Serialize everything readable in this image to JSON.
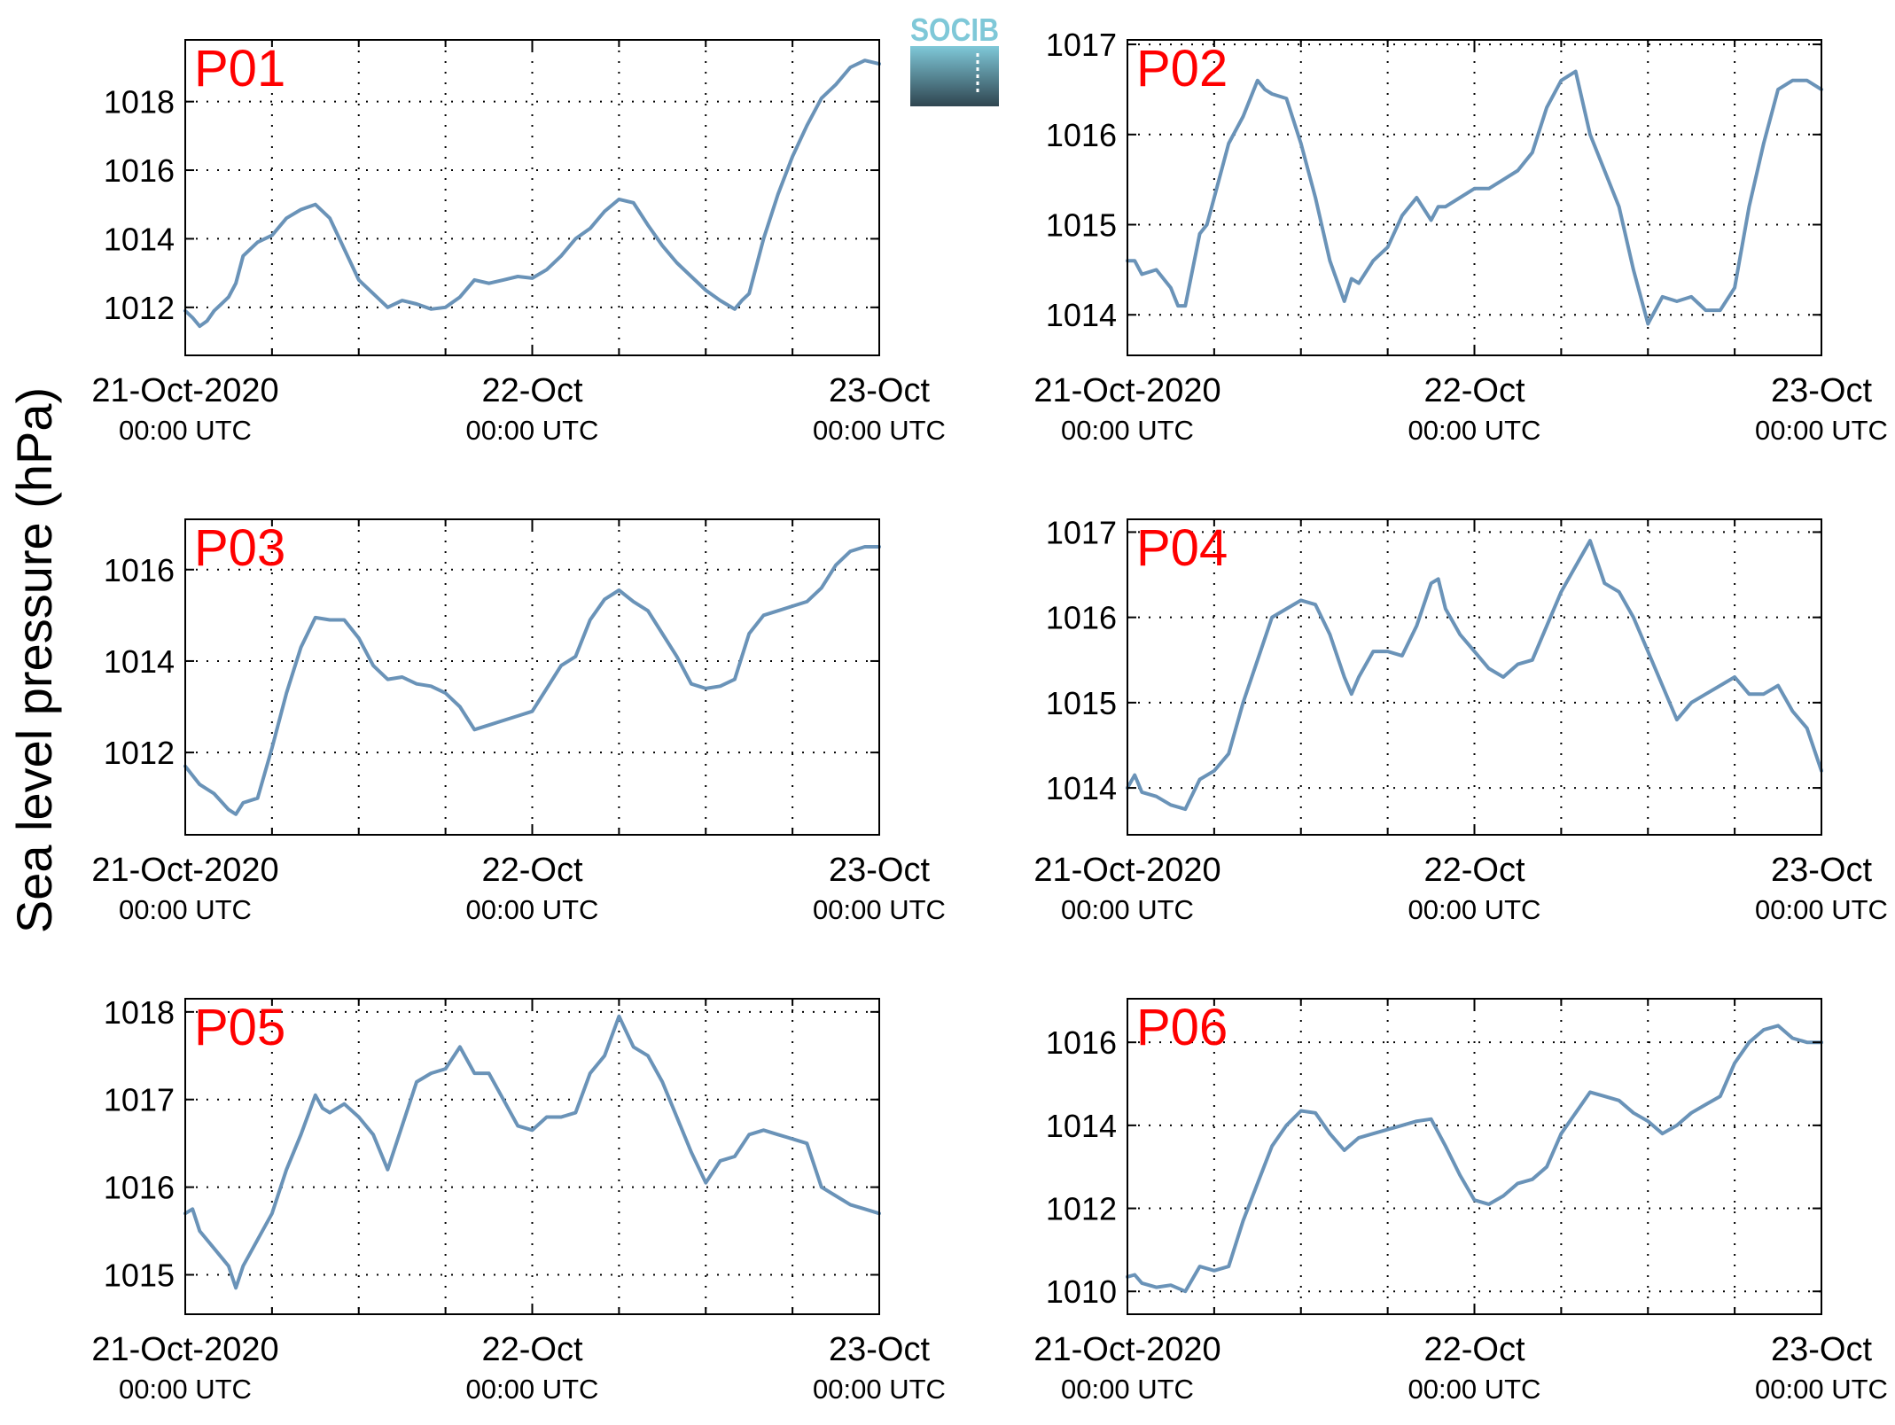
{
  "figure": {
    "ylabel": "Sea level pressure (hPa)",
    "logo_text": "SOCIB",
    "colors": {
      "line": "#6a93b8",
      "panel_label": "#ff0000",
      "axis": "#000000",
      "grid": "#000000",
      "logo_top": "#7fc8d8",
      "logo_bottom": "#2f4550"
    }
  },
  "chart_data": [
    {
      "type": "line",
      "panel_label": "P01",
      "ylim": [
        1010.6,
        1019.8
      ],
      "yticks": [
        1012,
        1014,
        1016,
        1018
      ],
      "xticks": [
        "21-Oct-2020",
        "22-Oct",
        "23-Oct"
      ],
      "xticks_sub": [
        "00:00 UTC",
        "00:00 UTC",
        "00:00 UTC"
      ],
      "xlim_hours": [
        0,
        48
      ],
      "grid": true,
      "x": [
        0,
        0.5,
        1,
        1.5,
        2,
        2.5,
        3,
        3.5,
        4,
        5,
        6,
        7,
        8,
        9,
        10,
        11,
        12,
        13,
        14,
        15,
        16,
        17,
        18,
        19,
        20,
        21,
        22,
        23,
        24,
        25,
        26,
        27,
        28,
        29,
        30,
        31,
        32,
        33,
        34,
        35,
        36,
        37,
        38,
        38.5,
        39,
        40,
        41,
        42,
        43,
        44,
        45,
        46,
        47,
        48
      ],
      "values": [
        1011.9,
        1011.7,
        1011.45,
        1011.6,
        1011.9,
        1012.1,
        1012.3,
        1012.7,
        1013.5,
        1013.9,
        1014.1,
        1014.6,
        1014.85,
        1015.0,
        1014.6,
        1013.7,
        1012.8,
        1012.4,
        1012.0,
        1012.2,
        1012.1,
        1011.95,
        1012.0,
        1012.3,
        1012.8,
        1012.7,
        1012.8,
        1012.9,
        1012.85,
        1013.1,
        1013.5,
        1014.0,
        1014.3,
        1014.8,
        1015.15,
        1015.05,
        1014.4,
        1013.8,
        1013.3,
        1012.9,
        1012.5,
        1012.2,
        1011.95,
        1012.2,
        1012.4,
        1014.0,
        1015.3,
        1016.4,
        1017.3,
        1018.1,
        1018.5,
        1019.0,
        1019.2,
        1019.1
      ]
    },
    {
      "type": "line",
      "panel_label": "P02",
      "ylim": [
        1013.55,
        1017.05
      ],
      "yticks": [
        1014,
        1015,
        1016,
        1017
      ],
      "xticks": [
        "21-Oct-2020",
        "22-Oct",
        "23-Oct"
      ],
      "xticks_sub": [
        "00:00 UTC",
        "00:00 UTC",
        "00:00 UTC"
      ],
      "xlim_hours": [
        0,
        48
      ],
      "grid": true,
      "x": [
        0,
        0.5,
        1,
        2,
        3,
        3.5,
        4,
        5,
        5.5,
        6,
        7,
        8,
        9,
        9.5,
        10,
        11,
        12,
        13,
        14,
        15,
        15.5,
        16,
        17,
        18,
        19,
        20,
        21,
        21.5,
        22,
        23,
        24,
        25,
        26,
        27,
        28,
        29,
        30,
        31,
        32,
        33,
        34,
        35,
        36,
        37,
        38,
        39,
        40,
        41,
        42,
        43,
        44,
        45,
        46,
        47,
        48
      ],
      "values": [
        1014.6,
        1014.6,
        1014.45,
        1014.5,
        1014.3,
        1014.1,
        1014.1,
        1014.9,
        1015.0,
        1015.3,
        1015.9,
        1016.2,
        1016.6,
        1016.5,
        1016.45,
        1016.4,
        1015.9,
        1015.3,
        1014.6,
        1014.15,
        1014.4,
        1014.35,
        1014.6,
        1014.75,
        1015.1,
        1015.3,
        1015.05,
        1015.2,
        1015.2,
        1015.3,
        1015.4,
        1015.4,
        1015.5,
        1015.6,
        1015.8,
        1016.3,
        1016.6,
        1016.7,
        1016.0,
        1015.6,
        1015.2,
        1014.5,
        1013.9,
        1014.2,
        1014.15,
        1014.2,
        1014.05,
        1014.05,
        1014.3,
        1015.2,
        1015.9,
        1016.5,
        1016.6,
        1016.6,
        1016.5
      ]
    },
    {
      "type": "line",
      "panel_label": "P03",
      "ylim": [
        1010.2,
        1017.1
      ],
      "yticks": [
        1012,
        1014,
        1016
      ],
      "xticks": [
        "21-Oct-2020",
        "22-Oct",
        "23-Oct"
      ],
      "xticks_sub": [
        "00:00 UTC",
        "00:00 UTC",
        "00:00 UTC"
      ],
      "xlim_hours": [
        0,
        48
      ],
      "grid": true,
      "x": [
        0,
        1,
        2,
        3,
        3.5,
        4,
        5,
        6,
        7,
        8,
        9,
        10,
        11,
        12,
        13,
        14,
        15,
        16,
        17,
        18,
        19,
        20,
        21,
        22,
        23,
        24,
        25,
        26,
        27,
        28,
        29,
        30,
        31,
        32,
        33,
        34,
        35,
        36,
        37,
        38,
        39,
        40,
        41,
        42,
        43,
        44,
        45,
        46,
        47,
        48
      ],
      "values": [
        1011.7,
        1011.3,
        1011.1,
        1010.75,
        1010.65,
        1010.9,
        1011.0,
        1012.1,
        1013.3,
        1014.3,
        1014.95,
        1014.9,
        1014.9,
        1014.5,
        1013.9,
        1013.6,
        1013.65,
        1013.5,
        1013.45,
        1013.3,
        1013.0,
        1012.5,
        1012.6,
        1012.7,
        1012.8,
        1012.9,
        1013.4,
        1013.9,
        1014.1,
        1014.9,
        1015.35,
        1015.55,
        1015.3,
        1015.1,
        1014.6,
        1014.1,
        1013.5,
        1013.4,
        1013.45,
        1013.6,
        1014.6,
        1015.0,
        1015.1,
        1015.2,
        1015.3,
        1015.6,
        1016.1,
        1016.4,
        1016.5,
        1016.5
      ]
    },
    {
      "type": "line",
      "panel_label": "P04",
      "ylim": [
        1013.45,
        1017.15
      ],
      "yticks": [
        1014,
        1015,
        1016,
        1017
      ],
      "xticks": [
        "21-Oct-2020",
        "22-Oct",
        "23-Oct"
      ],
      "xticks_sub": [
        "00:00 UTC",
        "00:00 UTC",
        "00:00 UTC"
      ],
      "xlim_hours": [
        0,
        48
      ],
      "grid": true,
      "x": [
        0,
        0.5,
        1,
        2,
        3,
        4,
        5,
        6,
        7,
        8,
        9,
        10,
        11,
        12,
        13,
        14,
        15,
        15.5,
        16,
        17,
        18,
        19,
        20,
        21,
        21.5,
        22,
        23,
        24,
        25,
        26,
        27,
        28,
        29,
        30,
        31,
        32,
        33,
        34,
        35,
        36,
        37,
        38,
        39,
        40,
        41,
        42,
        43,
        44,
        45,
        46,
        47,
        48
      ],
      "values": [
        1014.0,
        1014.15,
        1013.95,
        1013.9,
        1013.8,
        1013.75,
        1014.1,
        1014.2,
        1014.4,
        1015.0,
        1015.5,
        1016.0,
        1016.1,
        1016.2,
        1016.15,
        1015.8,
        1015.3,
        1015.1,
        1015.3,
        1015.6,
        1015.6,
        1015.55,
        1015.9,
        1016.4,
        1016.45,
        1016.1,
        1015.8,
        1015.6,
        1015.4,
        1015.3,
        1015.45,
        1015.5,
        1015.9,
        1016.3,
        1016.6,
        1016.9,
        1016.4,
        1016.3,
        1016.0,
        1015.6,
        1015.2,
        1014.8,
        1015.0,
        1015.1,
        1015.2,
        1015.3,
        1015.1,
        1015.1,
        1015.2,
        1014.9,
        1014.7,
        1014.2
      ]
    },
    {
      "type": "line",
      "panel_label": "P05",
      "ylim": [
        1014.55,
        1018.15
      ],
      "yticks": [
        1015,
        1016,
        1017,
        1018
      ],
      "xticks": [
        "21-Oct-2020",
        "22-Oct",
        "23-Oct"
      ],
      "xticks_sub": [
        "00:00 UTC",
        "00:00 UTC",
        "00:00 UTC"
      ],
      "xlim_hours": [
        0,
        48
      ],
      "grid": true,
      "x": [
        0,
        0.5,
        1,
        2,
        3,
        3.5,
        4,
        5,
        6,
        7,
        8,
        9,
        9.5,
        10,
        11,
        12,
        13,
        14,
        15,
        16,
        17,
        18,
        19,
        20,
        21,
        22,
        23,
        24,
        25,
        26,
        27,
        28,
        29,
        30,
        31,
        32,
        33,
        34,
        35,
        36,
        37,
        38,
        39,
        40,
        41,
        42,
        43,
        44,
        45,
        46,
        47,
        48
      ],
      "values": [
        1015.7,
        1015.75,
        1015.5,
        1015.3,
        1015.1,
        1014.85,
        1015.1,
        1015.4,
        1015.7,
        1016.2,
        1016.6,
        1017.05,
        1016.9,
        1016.85,
        1016.95,
        1016.8,
        1016.6,
        1016.2,
        1016.7,
        1017.2,
        1017.3,
        1017.35,
        1017.6,
        1017.3,
        1017.3,
        1017.0,
        1016.7,
        1016.65,
        1016.8,
        1016.8,
        1016.85,
        1017.3,
        1017.5,
        1017.95,
        1017.6,
        1017.5,
        1017.2,
        1016.8,
        1016.4,
        1016.05,
        1016.3,
        1016.35,
        1016.6,
        1016.65,
        1016.6,
        1016.55,
        1016.5,
        1016.0,
        1015.9,
        1015.8,
        1015.75,
        1015.7
      ]
    },
    {
      "type": "line",
      "panel_label": "P06",
      "ylim": [
        1009.45,
        1017.05
      ],
      "yticks": [
        1010,
        1012,
        1014,
        1016
      ],
      "xticks": [
        "21-Oct-2020",
        "22-Oct",
        "23-Oct"
      ],
      "xticks_sub": [
        "00:00 UTC",
        "00:00 UTC",
        "00:00 UTC"
      ],
      "xlim_hours": [
        0,
        48
      ],
      "grid": true,
      "x": [
        0,
        0.5,
        1,
        2,
        3,
        4,
        5,
        6,
        7,
        8,
        9,
        10,
        11,
        12,
        13,
        14,
        15,
        16,
        17,
        18,
        19,
        20,
        21,
        22,
        23,
        24,
        25,
        26,
        27,
        28,
        29,
        30,
        31,
        32,
        33,
        34,
        35,
        36,
        37,
        38,
        39,
        40,
        41,
        42,
        43,
        44,
        45,
        46,
        47,
        48
      ],
      "values": [
        1010.35,
        1010.4,
        1010.2,
        1010.1,
        1010.15,
        1010.0,
        1010.6,
        1010.5,
        1010.6,
        1011.7,
        1012.6,
        1013.5,
        1014.0,
        1014.35,
        1014.3,
        1013.8,
        1013.4,
        1013.7,
        1013.8,
        1013.9,
        1014.0,
        1014.1,
        1014.15,
        1013.5,
        1012.8,
        1012.2,
        1012.1,
        1012.3,
        1012.6,
        1012.7,
        1013.0,
        1013.8,
        1014.3,
        1014.8,
        1014.7,
        1014.6,
        1014.3,
        1014.1,
        1013.8,
        1014.0,
        1014.3,
        1014.5,
        1014.7,
        1015.5,
        1016.0,
        1016.3,
        1016.4,
        1016.1,
        1016.0,
        1016.0
      ]
    }
  ]
}
